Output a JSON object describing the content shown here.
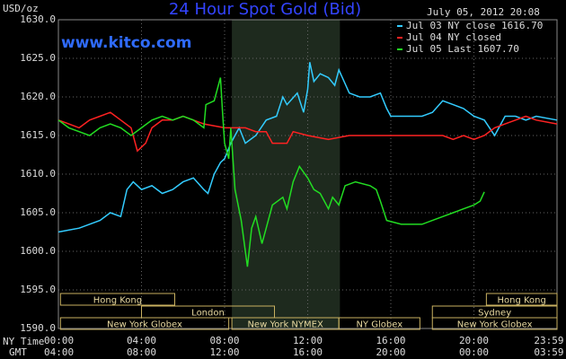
{
  "chart_data": {
    "type": "line",
    "title": "24 Hour Spot Gold (Bid)",
    "timestamp": "July 05, 2012 20:08",
    "watermark": "www.kitco.com",
    "ylabel": "USD/oz",
    "x_row_labels": [
      "NY Time",
      "GMT"
    ],
    "xlim": [
      0,
      24
    ],
    "ylim": [
      1590,
      1630
    ],
    "xticks": [
      {
        "value": 0,
        "label": "00:00"
      },
      {
        "value": 4,
        "label": "04:00"
      },
      {
        "value": 8,
        "label": "08:00"
      },
      {
        "value": 12,
        "label": "12:00"
      },
      {
        "value": 16,
        "label": "16:00"
      },
      {
        "value": 20,
        "label": "20:00"
      },
      {
        "value": 23.98,
        "label": "23:59"
      }
    ],
    "gmt_labels": [
      "04:00",
      "08:00",
      "12:00",
      "16:00",
      "20:00",
      "00:00",
      "03:59"
    ],
    "yticks": [
      {
        "value": 1590,
        "label": "1590.0"
      },
      {
        "value": 1595,
        "label": "1595.0"
      },
      {
        "value": 1600,
        "label": "1600.0"
      },
      {
        "value": 1605,
        "label": "1605.0"
      },
      {
        "value": 1610,
        "label": "1610.0"
      },
      {
        "value": 1615,
        "label": "1615.0"
      },
      {
        "value": 1620,
        "label": "1620.0"
      },
      {
        "value": 1625,
        "label": "1625.0"
      },
      {
        "value": 1630,
        "label": "1630.0"
      }
    ],
    "grid": true,
    "highlight": [
      8.35,
      13.55
    ],
    "sessions": [
      {
        "name": "Hong Kong",
        "start": 0.1,
        "end": 5.6,
        "row": 0
      },
      {
        "name": "Hong Kong",
        "start": 20.6,
        "end": 24,
        "row": 0
      },
      {
        "name": "London",
        "start": 4.0,
        "end": 10.4,
        "row": 1
      },
      {
        "name": "Sydney",
        "start": 18.0,
        "end": 24,
        "row": 1
      },
      {
        "name": "New York Globex",
        "start": 0.1,
        "end": 8.2,
        "row": 2
      },
      {
        "name": "New York NYMEX",
        "start": 8.35,
        "end": 13.5,
        "row": 2
      },
      {
        "name": "NY Globex",
        "start": 13.5,
        "end": 17.4,
        "row": 2
      },
      {
        "name": "New York Globex",
        "start": 18.0,
        "end": 24,
        "row": 2
      }
    ],
    "series": [
      {
        "name": "Jul 03 NY close 1616.70",
        "color": "#33ccff",
        "x": [
          0,
          1,
          2,
          2.5,
          3,
          3.3,
          3.6,
          4,
          4.5,
          5,
          5.5,
          6,
          6.5,
          7,
          7.2,
          7.5,
          7.8,
          8,
          8.3,
          8.7,
          9,
          9.5,
          10,
          10.5,
          10.8,
          11,
          11.5,
          11.8,
          12,
          12.1,
          12.3,
          12.6,
          13,
          13.3,
          13.5,
          14,
          14.5,
          15,
          15.5,
          15.8,
          16,
          17,
          17.5,
          18,
          18.5,
          19,
          19.5,
          20,
          20.5,
          21,
          21.5,
          22,
          22.5,
          23,
          24
        ],
        "values": [
          1602.5,
          1603,
          1604,
          1605,
          1604.5,
          1608,
          1609,
          1608,
          1608.5,
          1607.5,
          1608,
          1609,
          1609.5,
          1608,
          1607.5,
          1610,
          1611.5,
          1612,
          1614,
          1616,
          1614,
          1615,
          1617,
          1617.5,
          1620,
          1619,
          1620.5,
          1618,
          1621,
          1624.5,
          1622,
          1623,
          1622.5,
          1621.5,
          1623.5,
          1620.5,
          1620,
          1620,
          1620.5,
          1618.5,
          1617.5,
          1617.5,
          1617.5,
          1618,
          1619.5,
          1619,
          1618.5,
          1617.5,
          1617,
          1615,
          1617.5,
          1617.5,
          1617,
          1617.5,
          1617
        ]
      },
      {
        "name": "Jul 04 NY closed",
        "color": "#ff2222",
        "x": [
          0,
          0.5,
          1,
          1.5,
          2,
          2.5,
          3,
          3.5,
          3.8,
          4.2,
          4.5,
          5,
          5.5,
          6,
          6.5,
          7,
          8,
          9,
          9.5,
          10,
          10.3,
          11,
          11.3,
          12,
          13,
          14,
          15,
          16,
          17,
          18,
          18.5,
          19,
          19.5,
          20,
          20.5,
          21,
          21.5,
          22,
          22.5,
          23,
          24
        ],
        "values": [
          1617,
          1616.5,
          1616,
          1617,
          1617.5,
          1618,
          1617,
          1616,
          1613,
          1614,
          1616,
          1617,
          1617,
          1617.5,
          1617,
          1616.5,
          1616,
          1616,
          1615.5,
          1615.5,
          1614,
          1614,
          1615.5,
          1615,
          1614.5,
          1615,
          1615,
          1615,
          1615,
          1615,
          1615,
          1614.5,
          1615,
          1614.5,
          1615,
          1616,
          1616.5,
          1617,
          1617.5,
          1617,
          1616.5
        ]
      },
      {
        "name": "Jul 05 Last 1607.70",
        "color": "#22dd22",
        "x": [
          0,
          0.5,
          1,
          1.5,
          2,
          2.5,
          3,
          3.5,
          4,
          4.5,
          5,
          5.5,
          6,
          6.5,
          7,
          7.1,
          7.5,
          7.8,
          7.9,
          8,
          8.2,
          8.3,
          8.5,
          8.8,
          9,
          9.1,
          9.3,
          9.5,
          9.8,
          10,
          10.3,
          10.8,
          11,
          11.3,
          11.6,
          12,
          12.3,
          12.6,
          13,
          13.2,
          13.5,
          13.8,
          14.3,
          15,
          15.3,
          15.5,
          15.8,
          16.5,
          17,
          17.5,
          18,
          18.5,
          19,
          19.5,
          20,
          20.3,
          20.5
        ],
        "values": [
          1617,
          1616,
          1615.5,
          1615,
          1616,
          1616.5,
          1616,
          1615,
          1616,
          1617,
          1617.5,
          1617,
          1617.5,
          1617,
          1616,
          1619,
          1619.5,
          1622.5,
          1618,
          1614,
          1612,
          1616,
          1608,
          1604,
          1600,
          1598,
          1603,
          1604.5,
          1601,
          1603,
          1606,
          1607,
          1605.5,
          1609,
          1611,
          1609.5,
          1608,
          1607.5,
          1605.5,
          1607,
          1606,
          1608.5,
          1609,
          1608.5,
          1608,
          1606.5,
          1604,
          1603.5,
          1603.5,
          1603.5,
          1604,
          1604.5,
          1605,
          1605.5,
          1606,
          1606.5,
          1607.7
        ]
      }
    ]
  }
}
